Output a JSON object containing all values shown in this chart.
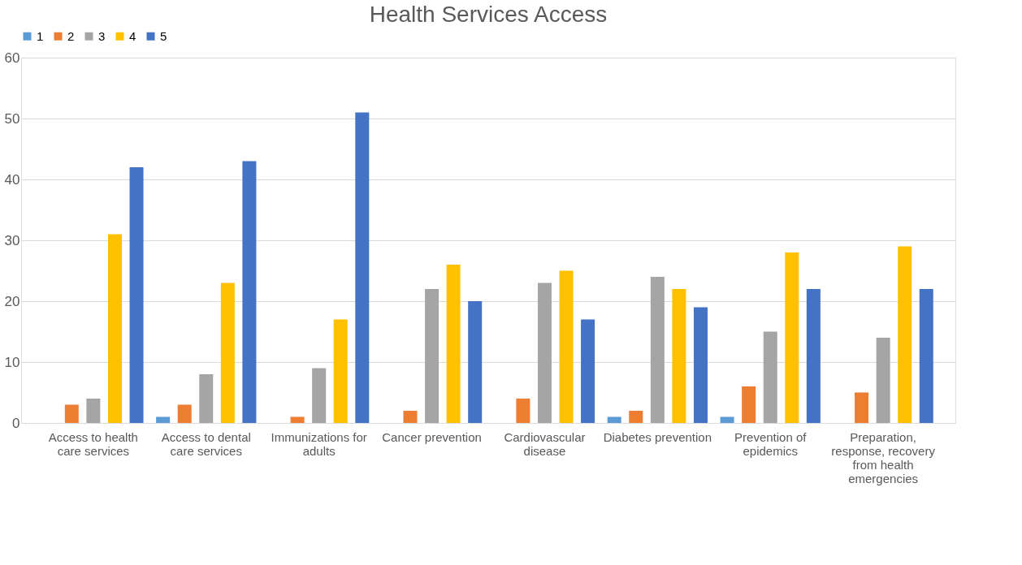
{
  "chart_data": {
    "type": "bar",
    "title": "Health Services Access",
    "categories": [
      "Access to health care services",
      "Access to dental care services",
      "Immunizations for adults",
      "Cancer prevention",
      "Cardiovascular disease",
      "Diabetes prevention",
      "Prevention of epidemics",
      "Preparation, response, recovery from health emergencies"
    ],
    "series": [
      {
        "name": "1",
        "color": "#5b9bd5",
        "values": [
          0,
          1,
          0,
          0,
          0,
          1,
          1,
          0
        ]
      },
      {
        "name": "2",
        "color": "#ed7d31",
        "values": [
          3,
          3,
          1,
          2,
          4,
          2,
          6,
          5
        ]
      },
      {
        "name": "3",
        "color": "#a5a5a5",
        "values": [
          4,
          8,
          9,
          22,
          23,
          24,
          15,
          14
        ]
      },
      {
        "name": "4",
        "color": "#ffc000",
        "values": [
          31,
          23,
          17,
          26,
          25,
          22,
          28,
          29
        ]
      },
      {
        "name": "5",
        "color": "#4472c4",
        "values": [
          42,
          43,
          51,
          20,
          17,
          19,
          22,
          22
        ]
      }
    ],
    "ylim": [
      0,
      60
    ],
    "yticks": [
      0,
      10,
      20,
      30,
      40,
      50,
      60
    ],
    "grid": "y",
    "legend": "top"
  }
}
